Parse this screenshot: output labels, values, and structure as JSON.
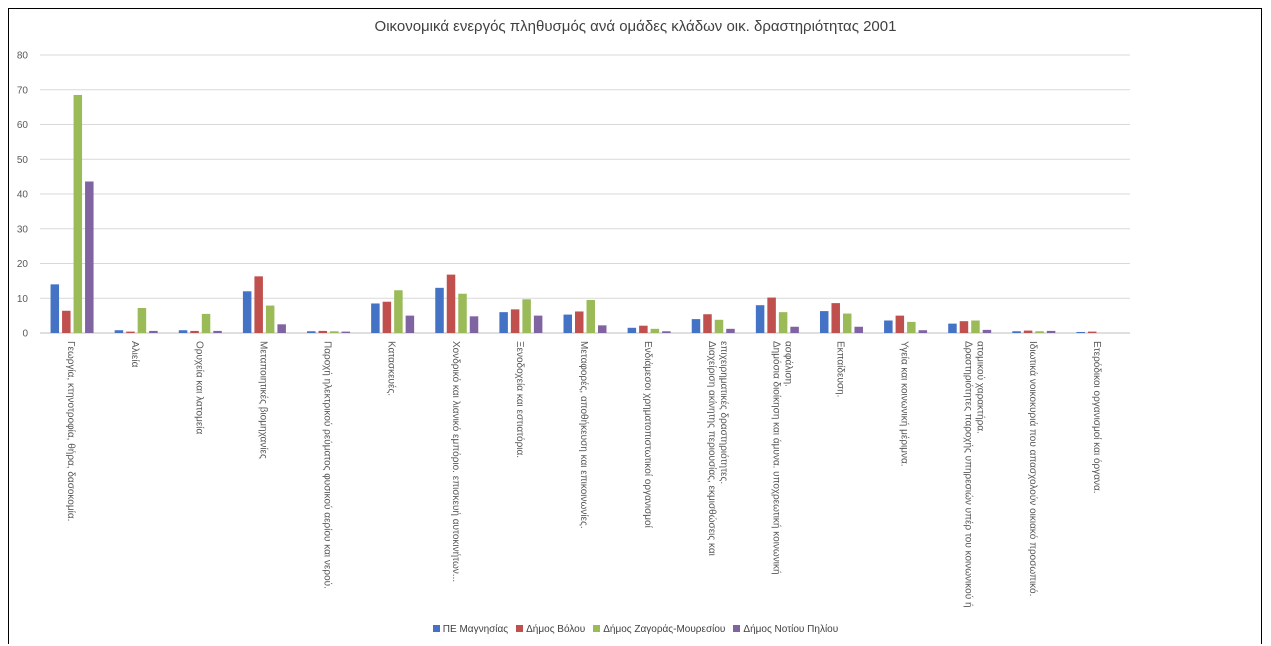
{
  "chart_data": {
    "type": "bar",
    "title": "Οικονομικά ενεργός πληθυσμός ανά ομάδες κλάδων οικ. δραστηριότητας 2001",
    "ylim": [
      0,
      80
    ],
    "yticks": [
      0,
      10,
      20,
      30,
      40,
      50,
      60,
      70,
      80
    ],
    "grid": true,
    "legend_position": "bottom",
    "categories": [
      "Γεωργία, κτηνοτροφία, θήρα, δασοκομία.",
      "Αλιεία",
      "Ορυχεία και λατομεία",
      "Μεταποιητικές βιομηχανίες",
      "Παροχή ηλεκτρικού ρεύματος φυσικού αερίου και νερού.",
      "Κατασκευές.",
      "Χονδρικό και λιανικό εμπόριο. επισκευή αυτοκινήτων...",
      "Ξενοδοχεία και εστιατόρια.",
      "Μεταφορές, αποθήκευση και επικοινωνίες.",
      "Ενδιάμεσοι χρηματοπιστωτικοί οργανισμοί",
      "Διαχείριση ακίνητης περιουσίας, εκμισθώσεις και επιχειρηματικές δραστηριότητες.",
      "Δημόσια διοίκηση και άμυνα. υποχρεωτική κοινωνική ασφάλιση.",
      "Εκπαίδευση.",
      "Υγεία και κοινωνική μέριμνα.",
      "Δραστηριότητες παροχής υπηρεσιών υπέρ του κοινωνικού ή ατομικού χαρακτήρα.",
      "Ιδιωτικά νοικοκυριά που απασχολούν οικιακό προσωπικό.",
      "Ετερόδικοι οργανισμοί και όργανα."
    ],
    "series": [
      {
        "name": "ΠΕ Μαγνησίας",
        "color": "#4472c4",
        "values": [
          14.0,
          0.8,
          0.8,
          12.0,
          0.5,
          8.5,
          13.0,
          6.0,
          5.3,
          1.5,
          4.0,
          8.0,
          6.3,
          3.6,
          2.7,
          0.5,
          0.3
        ]
      },
      {
        "name": "Δήμος Βόλου",
        "color": "#c0504d",
        "values": [
          6.4,
          0.4,
          0.6,
          16.3,
          0.6,
          9.0,
          16.8,
          6.8,
          6.2,
          2.1,
          5.4,
          10.2,
          8.6,
          5.0,
          3.4,
          0.7,
          0.4
        ]
      },
      {
        "name": "Δήμος Ζαγοράς-Μουρεσίου",
        "color": "#9bbb59",
        "values": [
          68.5,
          7.2,
          5.5,
          7.9,
          0.5,
          12.3,
          11.3,
          9.7,
          9.5,
          1.2,
          3.8,
          6.0,
          5.6,
          3.2,
          3.6,
          0.5,
          0.0
        ]
      },
      {
        "name": "Δήμος Νοτίου Πηλίου",
        "color": "#8064a2",
        "values": [
          43.6,
          0.6,
          0.6,
          2.5,
          0.4,
          5.0,
          4.8,
          5.0,
          2.2,
          0.5,
          1.2,
          1.8,
          1.8,
          0.8,
          0.9,
          0.6,
          0.0
        ]
      }
    ]
  }
}
